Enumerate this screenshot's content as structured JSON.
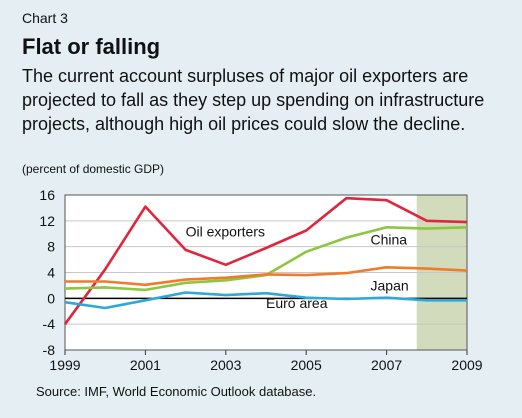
{
  "header": {
    "chart_number": "Chart 3",
    "title": "Flat or falling",
    "subtitle": "The current account surpluses of major oil exporters are projected to fall as they step up spending on infrastructure projects, although high oil prices could slow the decline.",
    "unit_note": "(percent of domestic GDP)"
  },
  "source": "Source: IMF, World Economic Outlook database.",
  "colors": {
    "background": "#e4eef3",
    "plot_background": "#ffffff",
    "projection_shading": "#d2dbbc",
    "oil_exporters": "#e0263c",
    "china": "#8dc63f",
    "japan": "#ef7b2c",
    "euro_area": "#2ea7da",
    "zero_line": "#000000",
    "grid": "#c7c7c7"
  },
  "chart_data": {
    "type": "line",
    "title": "Flat or falling",
    "xlabel": "",
    "ylabel": "(percent of domestic GDP)",
    "xlim": [
      1999,
      2009
    ],
    "ylim": [
      -8,
      16
    ],
    "x_ticks": [
      1999,
      2001,
      2003,
      2005,
      2007,
      2009
    ],
    "y_ticks": [
      -8,
      -4,
      0,
      4,
      8,
      12,
      16
    ],
    "grid": true,
    "shaded_region": [
      2007.75,
      2009
    ],
    "series": [
      {
        "name": "Oil exporters",
        "color": "#e0263c",
        "x": [
          1999,
          2000,
          2001,
          2002,
          2003,
          2004,
          2005,
          2006,
          2007,
          2008,
          2009
        ],
        "y": [
          -4.0,
          4.5,
          14.2,
          7.5,
          5.2,
          7.8,
          10.5,
          15.5,
          15.2,
          12.0,
          11.8
        ]
      },
      {
        "name": "China",
        "color": "#8dc63f",
        "x": [
          1999,
          2000,
          2001,
          2002,
          2003,
          2004,
          2005,
          2006,
          2007,
          2008,
          2009
        ],
        "y": [
          1.5,
          1.7,
          1.3,
          2.4,
          2.8,
          3.6,
          7.2,
          9.4,
          11.0,
          10.8,
          11.0
        ]
      },
      {
        "name": "Japan",
        "color": "#ef7b2c",
        "x": [
          1999,
          2000,
          2001,
          2002,
          2003,
          2004,
          2005,
          2006,
          2007,
          2008,
          2009
        ],
        "y": [
          2.6,
          2.6,
          2.1,
          2.9,
          3.2,
          3.7,
          3.6,
          3.9,
          4.8,
          4.6,
          4.3
        ]
      },
      {
        "name": "Euro area",
        "color": "#2ea7da",
        "x": [
          1999,
          2000,
          2001,
          2002,
          2003,
          2004,
          2005,
          2006,
          2007,
          2008,
          2009
        ],
        "y": [
          -0.6,
          -1.5,
          -0.3,
          0.9,
          0.5,
          0.8,
          0.1,
          -0.1,
          0.1,
          -0.3,
          -0.3
        ]
      }
    ],
    "annotations": [
      {
        "text": "Oil exporters",
        "x": 2002.0,
        "y": 9.6
      },
      {
        "text": "China",
        "x": 2006.6,
        "y": 8.3
      },
      {
        "text": "Japan",
        "x": 2006.6,
        "y": 1.2
      },
      {
        "text": "Euro area",
        "x": 2004.0,
        "y": -1.5
      }
    ]
  }
}
